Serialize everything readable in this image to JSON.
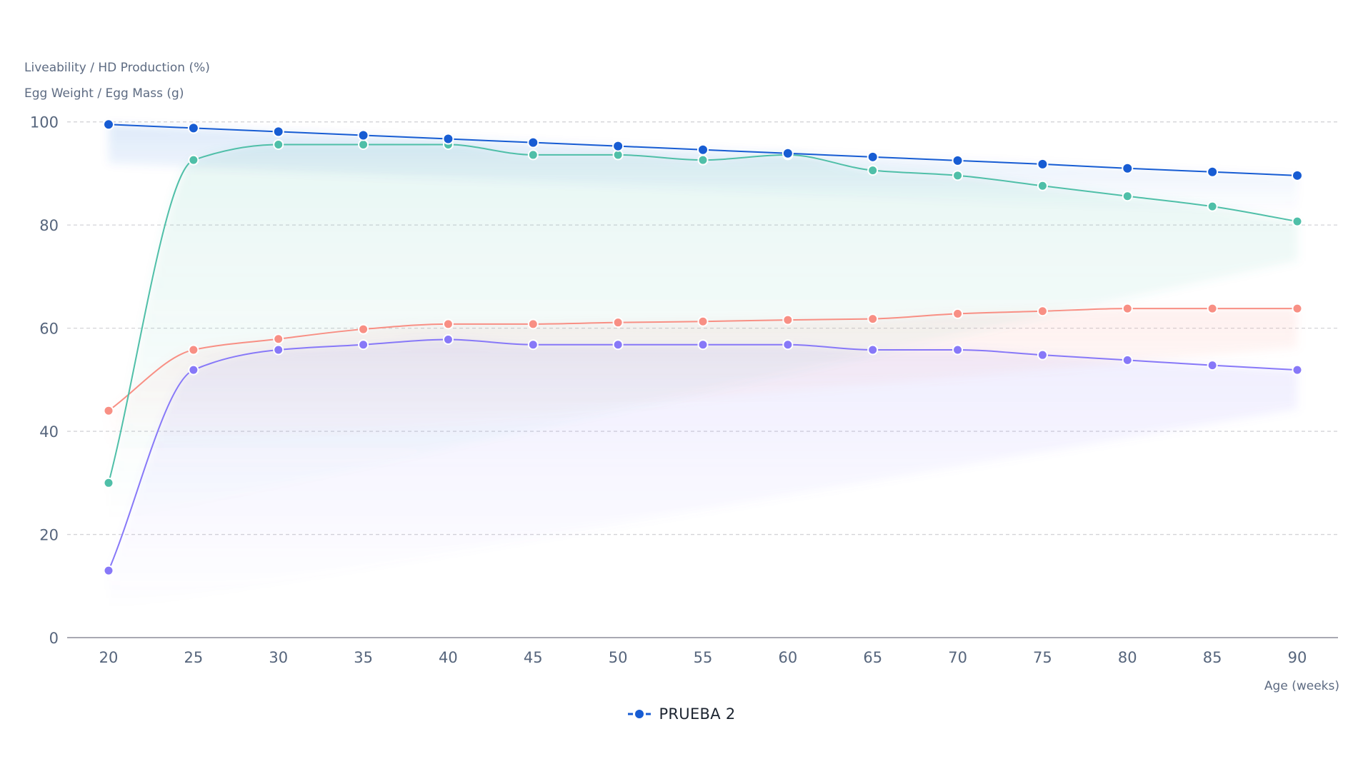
{
  "axes": {
    "y_title_line1": "Liveability / HD Production (%)",
    "y_title_line2": "Egg Weight / Egg Mass (g)",
    "x_title": "Age (weeks)",
    "y_ticks": [
      0,
      20,
      40,
      60,
      80,
      100
    ],
    "x_ticks": [
      20,
      25,
      30,
      35,
      40,
      45,
      50,
      55,
      60,
      65,
      70,
      75,
      80,
      85,
      90
    ]
  },
  "legend": {
    "items": [
      {
        "label": "PRUEBA 2",
        "color": "#175cd3"
      }
    ]
  },
  "colors": {
    "liveability": "#175cd3",
    "hd_production": "#4fbfa8",
    "egg_weight": "#f88f84",
    "egg_mass": "#8778f8",
    "grid": "#d4d4d8",
    "axis": "#a9a9b2",
    "tick_text": "#56657c"
  },
  "chart_data": {
    "type": "line",
    "title": "",
    "xlabel": "Age (weeks)",
    "ylabel": "Liveability / HD Production (%) | Egg Weight / Egg Mass (g)",
    "x": [
      20,
      25,
      30,
      35,
      40,
      45,
      50,
      55,
      60,
      65,
      70,
      75,
      80,
      85,
      90
    ],
    "xlim": [
      20,
      90
    ],
    "ylim": [
      0,
      100
    ],
    "grid": {
      "y": true,
      "x": false,
      "style": "dashed"
    },
    "legend_position": "bottom-center",
    "legend": [
      "PRUEBA 2"
    ],
    "interpolation": "smooth-monotone",
    "series": [
      {
        "name": "Liveability (%)",
        "color": "#175cd3",
        "values": [
          99.5,
          98.8,
          98.1,
          97.4,
          96.7,
          96.0,
          95.3,
          94.6,
          93.9,
          93.2,
          92.5,
          91.8,
          91.0,
          90.3,
          89.6
        ]
      },
      {
        "name": "HD Production (%)",
        "color": "#4fbfa8",
        "values": [
          30,
          92.6,
          95.6,
          95.6,
          95.6,
          93.6,
          93.6,
          92.6,
          93.6,
          90.6,
          89.6,
          87.6,
          85.6,
          83.6,
          80.7
        ]
      },
      {
        "name": "Egg Weight (g)",
        "color": "#f88f84",
        "values": [
          44,
          55.8,
          57.9,
          59.8,
          60.8,
          60.8,
          61.1,
          61.3,
          61.6,
          61.8,
          62.8,
          63.3,
          63.8,
          63.8,
          63.8
        ]
      },
      {
        "name": "Egg Mass (g)",
        "color": "#8778f8",
        "values": [
          13,
          51.9,
          55.8,
          56.8,
          57.8,
          56.8,
          56.8,
          56.8,
          56.8,
          55.8,
          55.8,
          54.8,
          53.8,
          52.8,
          51.9
        ]
      }
    ]
  }
}
